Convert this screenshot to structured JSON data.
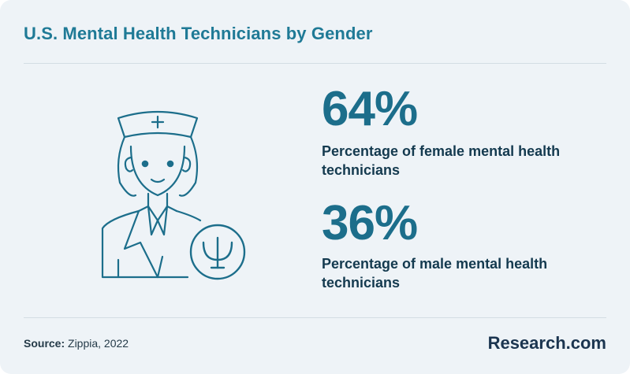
{
  "title": "U.S. Mental Health Technicians by Gender",
  "stats": [
    {
      "value": "64%",
      "label": "Percentage of female mental health technicians"
    },
    {
      "value": "36%",
      "label": "Percentage of male mental health technicians"
    }
  ],
  "source": {
    "label": "Source:",
    "text": "Zippia, 2022"
  },
  "brand": "Research.com",
  "colors": {
    "background": "#eef3f7",
    "title": "#1f7a96",
    "stat_value": "#1c6e8b",
    "stat_label": "#143a4f",
    "icon_stroke": "#1c6e8b",
    "brand": "#1b3550"
  },
  "icons": [
    "nurse-icon",
    "psi-symbol-icon"
  ],
  "chart_data": {
    "type": "table",
    "categories": [
      "Female",
      "Male"
    ],
    "values": [
      64,
      36
    ]
  }
}
